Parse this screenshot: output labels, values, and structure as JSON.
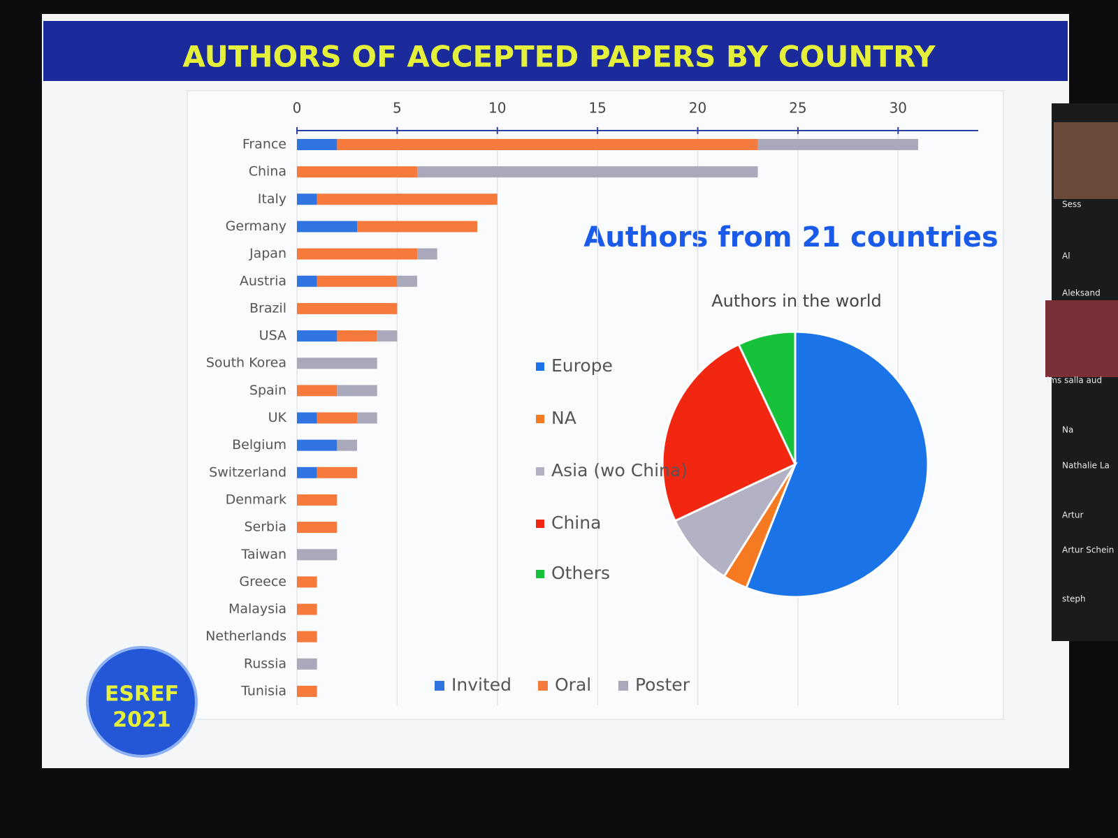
{
  "slide": {
    "title": "AUTHORS OF ACCEPTED PAPERS BY COUNTRY",
    "headline": "Authors  from 21 countries",
    "logo": [
      "ESREF",
      "2021"
    ]
  },
  "sidebar": [
    "Sess",
    "Al",
    "Aleksand",
    "ims salla aud",
    "Na",
    "Nathalie La",
    "Artur",
    "Artur Schein",
    "steph"
  ],
  "chart_data": [
    {
      "type": "bar",
      "orientation": "horizontal",
      "stacked": true,
      "grid": true,
      "legend": "bottom",
      "categories": [
        "France",
        "China",
        "Italy",
        "Germany",
        "Japan",
        "Austria",
        "Brazil",
        "USA",
        "South Korea",
        "Spain",
        "UK",
        "Belgium",
        "Switzerland",
        "Denmark",
        "Serbia",
        "Taiwan",
        "Greece",
        "Malaysia",
        "Netherlands",
        "Russia",
        "Tunisia"
      ],
      "series": [
        {
          "name": "Invited",
          "color": "#2f74e0",
          "values": [
            2,
            0,
            1,
            3,
            0,
            1,
            0,
            2,
            0,
            0,
            1,
            2,
            1,
            0,
            0,
            0,
            0,
            0,
            0,
            0,
            0
          ]
        },
        {
          "name": "Oral",
          "color": "#f57a3c",
          "values": [
            21,
            6,
            9,
            6,
            6,
            4,
            5,
            2,
            0,
            2,
            2,
            0,
            2,
            2,
            2,
            0,
            1,
            1,
            1,
            0,
            1
          ]
        },
        {
          "name": "Poster",
          "color": "#a9a9bb",
          "values": [
            8,
            17,
            0,
            0,
            1,
            1,
            0,
            1,
            4,
            2,
            1,
            1,
            0,
            0,
            0,
            2,
            0,
            0,
            0,
            1,
            0
          ]
        }
      ],
      "xlim": [
        0,
        34
      ],
      "xticks": [
        0,
        5,
        10,
        15,
        20,
        25,
        30
      ]
    },
    {
      "type": "pie",
      "title": "Authors in the world",
      "legend": "left",
      "categories": [
        "Europe",
        "NA",
        "Asia (wo China)",
        "China",
        "Others"
      ],
      "values": [
        56,
        3,
        9,
        25,
        7
      ],
      "colors": [
        "#1a74e8",
        "#f57a22",
        "#b2b2c4",
        "#f22712",
        "#16c23a"
      ]
    }
  ]
}
